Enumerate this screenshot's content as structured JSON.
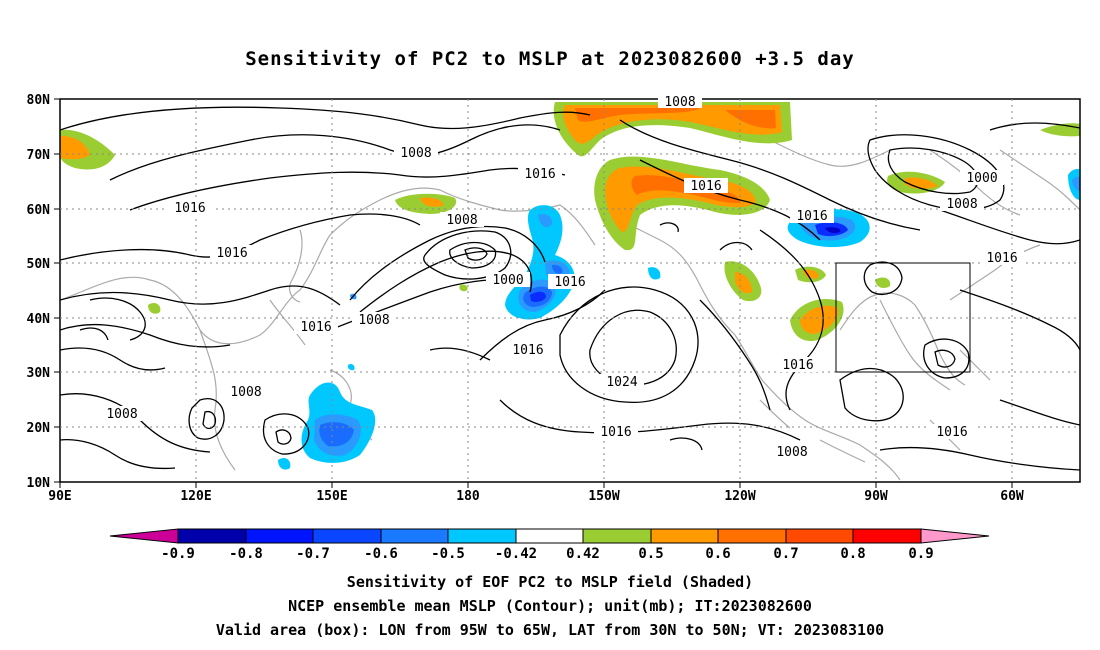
{
  "title": "Sensitivity of PC2 to MSLP at 2023082600 +3.5 day",
  "map": {
    "lat_labels": [
      "80N",
      "70N",
      "60N",
      "50N",
      "40N",
      "30N",
      "20N",
      "10N"
    ],
    "lon_labels": [
      "90E",
      "120E",
      "150E",
      "180",
      "150W",
      "120W",
      "90W",
      "60W"
    ],
    "valid_box": {
      "lon_from": "95W",
      "lon_to": "65W",
      "lat_from": "30N",
      "lat_to": "50N"
    },
    "contour_labels": [
      "1008",
      "1008",
      "1016",
      "1016",
      "1016",
      "1008",
      "1000",
      "1016",
      "1016",
      "1008",
      "1016",
      "1024",
      "1008",
      "1008",
      "1016",
      "1016",
      "1016",
      "1008",
      "1000",
      "1016",
      "1008"
    ],
    "colors": {
      "neg_0_9": "#9900aa",
      "neg_0_8": "#0000c8",
      "neg_0_7": "#0a2cff",
      "neg_0_6": "#1a6cff",
      "neg_0_5": "#2a9aff",
      "neg_0_42": "#00c8ff",
      "pos_0_42": "#9acd32",
      "pos_0_5": "#ff9a00",
      "pos_0_6": "#ff7000",
      "pos_0_7": "#ff4a00",
      "pos_0_8": "#ff1e00",
      "pos_0_9": "#ff96c8",
      "coast": "#aaaaaa",
      "contour": "#000000"
    }
  },
  "colorbar": {
    "labels": [
      "-0.9",
      "-0.8",
      "-0.7",
      "-0.6",
      "-0.5",
      "-0.42",
      "0.42",
      "0.5",
      "0.6",
      "0.7",
      "0.8",
      "0.9"
    ]
  },
  "caption": {
    "line1": "Sensitivity of EOF PC2 to MSLP field (Shaded)",
    "line2": "NCEP ensemble mean MSLP (Contour); unit(mb); IT:2023082600",
    "line3": "Valid area (box): LON from 95W to 65W, LAT from 30N to 50N; VT: 2023083100"
  }
}
